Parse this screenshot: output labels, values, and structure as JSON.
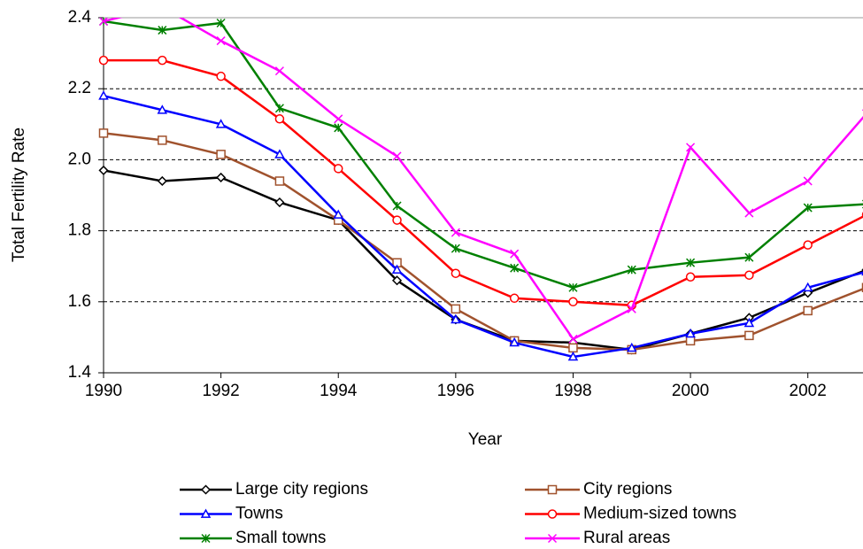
{
  "chart_data": {
    "type": "line",
    "x_label": "Year",
    "y_label": "Total Fertility Rate",
    "x": [
      1990,
      1991,
      1992,
      1993,
      1994,
      1995,
      1996,
      1997,
      1998,
      1999,
      2000,
      2001,
      2002,
      2003
    ],
    "series": [
      {
        "name": "Large city regions",
        "color": "#000000",
        "marker": "diamond",
        "values": [
          1.97,
          1.94,
          1.95,
          1.88,
          1.83,
          1.66,
          1.55,
          1.49,
          1.485,
          1.465,
          1.51,
          1.555,
          1.625,
          1.69
        ]
      },
      {
        "name": "City regions",
        "color": "#a0522d",
        "marker": "square",
        "values": [
          2.075,
          2.055,
          2.015,
          1.94,
          1.83,
          1.71,
          1.58,
          1.49,
          1.47,
          1.465,
          1.49,
          1.505,
          1.575,
          1.64
        ]
      },
      {
        "name": "Towns",
        "color": "#0000ff",
        "marker": "triangle",
        "values": [
          2.18,
          2.14,
          2.1,
          2.015,
          1.845,
          1.69,
          1.55,
          1.485,
          1.445,
          1.47,
          1.51,
          1.54,
          1.64,
          1.685
        ]
      },
      {
        "name": "Medium-sized towns",
        "color": "#ff0000",
        "marker": "circle",
        "values": [
          2.28,
          2.28,
          2.235,
          2.115,
          1.975,
          1.83,
          1.68,
          1.61,
          1.6,
          1.59,
          1.67,
          1.675,
          1.76,
          1.845
        ]
      },
      {
        "name": "Small towns",
        "color": "#008000",
        "marker": "asterisk",
        "values": [
          2.39,
          2.365,
          2.385,
          2.145,
          2.09,
          1.87,
          1.75,
          1.695,
          1.64,
          1.69,
          1.71,
          1.725,
          1.865,
          1.875
        ]
      },
      {
        "name": "Rural areas",
        "color": "#ff00ff",
        "marker": "x",
        "values": [
          2.39,
          2.43,
          2.335,
          2.25,
          2.115,
          2.01,
          1.795,
          1.735,
          1.495,
          1.58,
          2.035,
          1.85,
          1.94,
          2.13
        ]
      }
    ],
    "xlim": [
      1990,
      2003
    ],
    "xticks": [
      1990,
      1992,
      1994,
      1996,
      1998,
      2000,
      2002
    ],
    "ylim": [
      1.4,
      2.4
    ],
    "yticks": [
      1.4,
      1.6,
      1.8,
      {
        "value": 2,
        "label": "2.0"
      },
      2.2,
      2.4
    ],
    "grid": true
  }
}
